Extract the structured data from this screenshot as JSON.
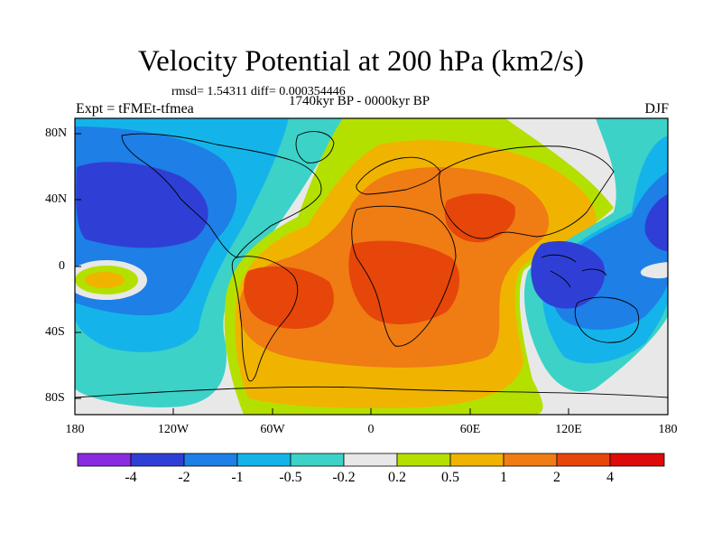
{
  "title": "Velocity Potential at 200 hPa (km2/s)",
  "stats_line": "rmsd= 1.54311 diff= 0.000354446",
  "period_line": "1740kyr BP - 0000kyr BP",
  "experiment_label": "Expt = tFMEt-tfmea",
  "season_label": "DJF",
  "lat_ticks": [
    "80N",
    "40N",
    "0",
    "40S",
    "80S"
  ],
  "lon_ticks": [
    "180",
    "120W",
    "60W",
    "0",
    "60E",
    "120E",
    "180"
  ],
  "colorbar": {
    "levels": [
      "-4",
      "-2",
      "-1",
      "-0.5",
      "-0.2",
      "0.2",
      "0.5",
      "1",
      "2",
      "4"
    ],
    "colors": [
      "#8a2be2",
      "#2f3fd6",
      "#1e7fe6",
      "#14b4ea",
      "#3cd2c8",
      "#e8e8e8",
      "#b4e000",
      "#f0b400",
      "#f07c14",
      "#e6460a",
      "#dc0a0a"
    ]
  },
  "chart_data": {
    "type": "heatmap",
    "x_range": [
      -180,
      180
    ],
    "y_range": [
      -90,
      90
    ],
    "field": "velocity potential",
    "units": "km2/s"
  }
}
